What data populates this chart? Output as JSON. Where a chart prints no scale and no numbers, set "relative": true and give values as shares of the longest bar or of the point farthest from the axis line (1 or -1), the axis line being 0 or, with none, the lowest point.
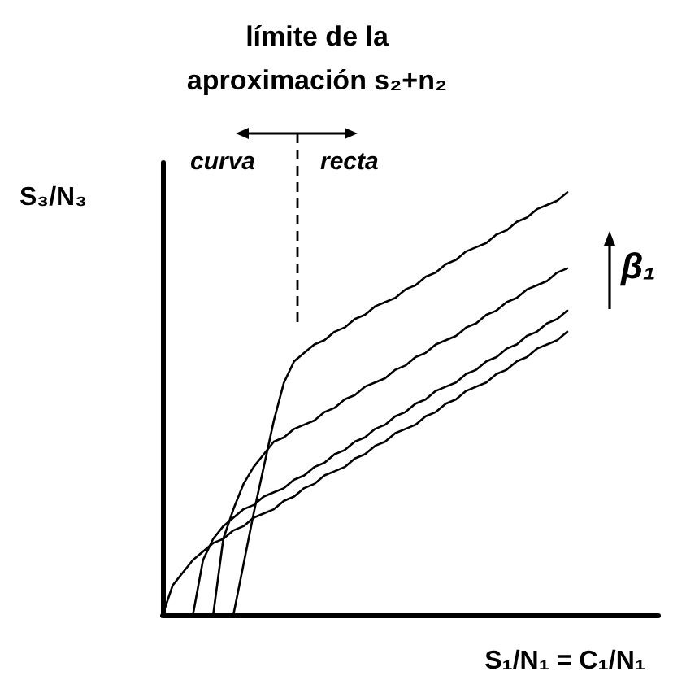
{
  "chart_data": {
    "type": "line",
    "relative": true,
    "xlabel": "S₁/N₁ = C₁/N₁",
    "ylabel": "S₃/N₃",
    "annotations": [
      "límite de la aproximación s₂+n₂",
      "curva",
      "recta",
      "β₁"
    ],
    "categories": [
      null,
      null,
      null,
      null,
      null,
      null,
      null,
      null,
      null,
      null,
      null,
      null,
      null,
      null,
      null,
      null,
      null,
      null,
      null,
      null,
      null,
      null,
      null,
      null,
      null,
      null,
      null,
      null,
      null,
      null,
      null,
      null,
      null,
      null,
      null,
      null,
      null,
      null,
      null,
      null,
      null,
      null,
      null,
      null,
      null,
      null,
      null,
      null,
      null,
      null
    ],
    "series": [
      {
        "color": "#000000",
        "values": [
          null,
          null,
          null,
          null,
          null,
          null,
          null,
          0,
          0.12,
          0.24,
          0.35,
          0.46,
          0.55,
          0.6,
          0.62,
          0.64,
          0.65,
          0.67,
          0.68,
          0.7,
          0.71,
          0.73,
          0.74,
          0.75,
          0.77,
          0.78,
          0.8,
          0.81,
          0.83,
          0.84,
          0.86,
          0.87,
          0.88,
          0.9,
          0.91,
          0.93,
          0.94,
          0.96,
          0.97,
          0.98,
          1,
          null,
          null,
          null,
          null,
          null,
          null,
          null,
          null,
          null
        ]
      },
      {
        "color": "#000000",
        "values": [
          null,
          null,
          null,
          null,
          null,
          0,
          0.18,
          0.25,
          0.31,
          0.35,
          0.38,
          0.41,
          0.42,
          0.44,
          0.45,
          0.46,
          0.48,
          0.49,
          0.51,
          0.52,
          0.54,
          0.55,
          0.56,
          0.58,
          0.59,
          0.61,
          0.62,
          0.64,
          0.65,
          0.66,
          0.68,
          0.69,
          0.71,
          0.72,
          0.74,
          0.75,
          0.77,
          0.78,
          0.79,
          0.81,
          0.82,
          null,
          null,
          null,
          null,
          null,
          null,
          null,
          null,
          null
        ]
      },
      {
        "color": "#000000",
        "values": [
          null,
          null,
          null,
          0,
          0.13,
          0.18,
          0.21,
          0.23,
          0.25,
          0.26,
          0.28,
          0.29,
          0.3,
          0.32,
          0.33,
          0.35,
          0.36,
          0.38,
          0.39,
          0.41,
          0.42,
          0.44,
          0.45,
          0.47,
          0.48,
          0.5,
          0.51,
          0.53,
          0.54,
          0.55,
          0.57,
          0.58,
          0.6,
          0.61,
          0.63,
          0.64,
          0.66,
          0.67,
          0.69,
          0.7,
          0.72,
          null,
          null,
          null,
          null,
          null,
          null,
          null,
          null,
          null
        ]
      },
      {
        "color": "#000000",
        "values": [
          0,
          0.07,
          0.1,
          0.13,
          0.15,
          0.17,
          0.18,
          0.2,
          0.21,
          0.23,
          0.24,
          0.25,
          0.27,
          0.28,
          0.3,
          0.31,
          0.33,
          0.34,
          0.35,
          0.37,
          0.38,
          0.4,
          0.41,
          0.43,
          0.44,
          0.45,
          0.47,
          0.48,
          0.5,
          0.51,
          0.53,
          0.54,
          0.55,
          0.57,
          0.58,
          0.6,
          0.61,
          0.63,
          0.64,
          0.65,
          0.67,
          null,
          null,
          null,
          null,
          null,
          null,
          null,
          null,
          null
        ]
      }
    ]
  }
}
